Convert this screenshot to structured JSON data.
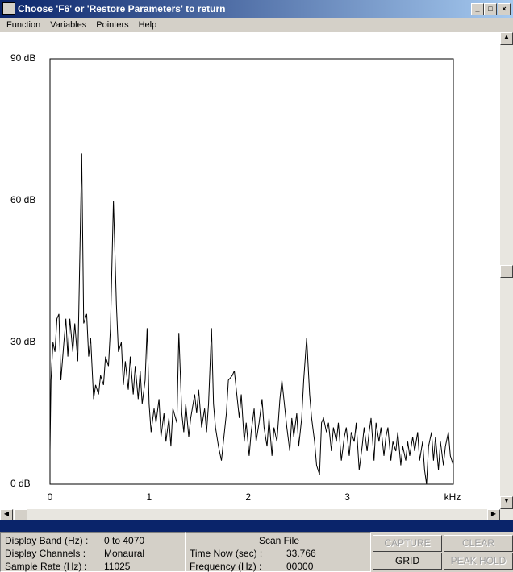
{
  "window": {
    "title": "Choose 'F6' or 'Restore Parameters' to return"
  },
  "menu": [
    "Function",
    "Variables",
    "Pointers",
    "Help"
  ],
  "chart_data": {
    "type": "line",
    "xlabel": "kHz",
    "x": [
      0.0,
      0.01,
      0.03,
      0.05,
      0.07,
      0.09,
      0.11,
      0.14,
      0.16,
      0.18,
      0.2,
      0.23,
      0.25,
      0.28,
      0.29,
      0.32,
      0.34,
      0.37,
      0.39,
      0.41,
      0.44,
      0.46,
      0.49,
      0.51,
      0.54,
      0.56,
      0.59,
      0.61,
      0.64,
      0.67,
      0.69,
      0.72,
      0.74,
      0.76,
      0.79,
      0.81,
      0.84,
      0.86,
      0.89,
      0.91,
      0.93,
      0.96,
      0.98,
      1.0,
      1.02,
      1.05,
      1.07,
      1.1,
      1.12,
      1.15,
      1.17,
      1.2,
      1.22,
      1.24,
      1.28,
      1.3,
      1.33,
      1.35,
      1.37,
      1.4,
      1.42,
      1.46,
      1.48,
      1.5,
      1.53,
      1.56,
      1.58,
      1.6,
      1.63,
      1.65,
      1.67,
      1.7,
      1.73,
      1.76,
      1.78,
      1.8,
      1.84,
      1.86,
      1.89,
      1.91,
      1.93,
      1.96,
      1.98,
      2.01,
      2.03,
      2.06,
      2.08,
      2.11,
      2.14,
      2.16,
      2.19,
      2.21,
      2.24,
      2.26,
      2.29,
      2.32,
      2.34,
      2.37,
      2.39,
      2.42,
      2.44,
      2.46,
      2.49,
      2.51,
      2.54,
      2.56,
      2.59,
      2.62,
      2.64,
      2.67,
      2.69,
      2.72,
      2.74,
      2.76,
      2.79,
      2.81,
      2.84,
      2.86,
      2.89,
      2.91,
      2.94,
      2.97,
      2.99,
      3.02,
      3.04,
      3.07,
      3.09,
      3.12,
      3.15,
      3.17,
      3.2,
      3.22,
      3.24,
      3.27,
      3.29,
      3.32,
      3.34,
      3.37,
      3.39,
      3.41,
      3.44,
      3.46,
      3.49,
      3.51,
      3.54,
      3.56,
      3.59,
      3.61,
      3.63,
      3.66,
      3.68,
      3.71,
      3.73,
      3.76,
      3.78,
      3.8,
      3.82,
      3.85,
      3.87,
      3.89,
      3.92,
      3.94,
      3.97,
      3.99,
      4.02,
      4.04,
      4.07
    ],
    "series": [
      {
        "color": "#000000",
        "values": [
          7,
          22,
          30,
          28,
          35,
          36,
          22,
          30,
          35,
          27,
          35,
          28,
          34,
          26,
          36,
          70,
          34,
          36,
          27,
          31,
          18,
          21,
          19,
          23,
          21,
          27,
          25,
          33,
          60,
          38,
          28,
          30,
          21,
          26,
          20,
          27,
          19,
          25,
          18,
          24,
          17,
          22,
          33,
          17,
          11,
          16,
          13,
          18,
          10,
          15,
          9,
          14,
          8,
          16,
          13,
          32,
          15,
          11,
          17,
          10,
          14,
          19,
          15,
          20,
          12,
          16,
          11,
          17,
          33,
          17,
          12,
          8,
          5,
          11,
          15,
          22,
          23,
          24,
          18,
          14,
          19,
          9,
          13,
          6,
          11,
          16,
          9,
          13,
          18,
          12,
          8,
          14,
          6,
          12,
          9,
          18,
          22,
          16,
          12,
          7,
          14,
          10,
          15,
          8,
          14,
          22,
          31,
          19,
          14,
          9,
          4,
          2,
          13,
          14,
          11,
          13,
          7,
          12,
          9,
          13,
          5,
          10,
          12,
          6,
          11,
          9,
          13,
          3,
          8,
          12,
          7,
          11,
          14,
          5,
          13,
          9,
          12,
          6,
          10,
          12,
          5,
          9,
          7,
          11,
          4,
          8,
          5,
          9,
          6,
          10,
          7,
          11,
          5,
          9,
          3,
          0,
          8,
          11,
          5,
          10,
          3,
          9,
          4,
          8,
          11,
          6,
          4
        ]
      }
    ],
    "xlim": [
      0,
      4.07
    ],
    "xticks": [
      0,
      1,
      2,
      3
    ],
    "ylim": [
      0,
      90
    ],
    "yticks": [
      {
        "value": 0,
        "label": "0 dB"
      },
      {
        "value": 30,
        "label": "30 dB"
      },
      {
        "value": 60,
        "label": "60 dB"
      },
      {
        "value": 90,
        "label": "90 dB"
      }
    ],
    "grid": false
  },
  "status": {
    "left": [
      {
        "label": "Display Band (Hz) :",
        "value": "0 to 4070"
      },
      {
        "label": "Display Channels :",
        "value": "Monaural"
      },
      {
        "label": "Sample Rate (Hz) :",
        "value": "11025"
      }
    ],
    "middle": {
      "title": "Scan File",
      "rows": [
        {
          "label": "Time Now (sec) :",
          "value": "33.766"
        },
        {
          "label": "Frequency (Hz) :",
          "value": "00000"
        }
      ]
    },
    "buttons": [
      "CAPTURE",
      "CLEAR",
      "GRID",
      "PEAK HOLD"
    ]
  }
}
